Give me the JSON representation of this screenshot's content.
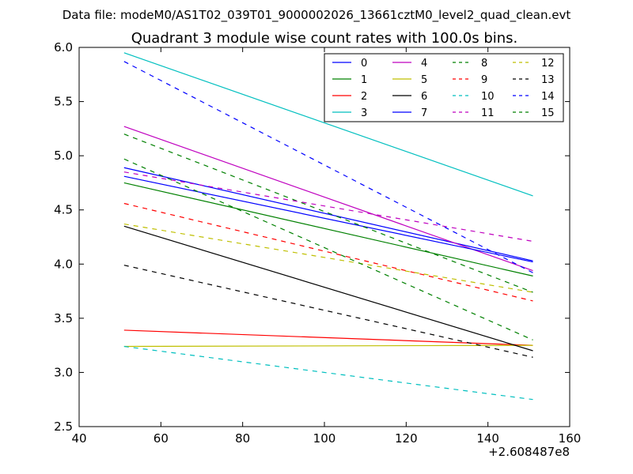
{
  "page": {
    "file_title": "Data file: modeM0/AS1T02_039T01_9000002026_13661cztM0_level2_quad_clean.evt"
  },
  "chart_data": {
    "type": "line",
    "title": "Quadrant 3 module wise count rates with 100.0s bins.",
    "xlabel": "",
    "ylabel": "",
    "x_offset_label": "+2.608487e8",
    "xlim": [
      40,
      160
    ],
    "ylim": [
      2.5,
      6.0
    ],
    "x_ticks": [
      40,
      60,
      80,
      100,
      120,
      140,
      160
    ],
    "y_ticks": [
      2.5,
      3.0,
      3.5,
      4.0,
      4.5,
      5.0,
      5.5,
      6.0
    ],
    "x_tick_labels": [
      "40",
      "60",
      "80",
      "100",
      "120",
      "140",
      "160"
    ],
    "y_tick_labels": [
      "2.5",
      "3.0",
      "3.5",
      "4.0",
      "4.5",
      "5.0",
      "5.5",
      "6.0"
    ],
    "grid": false,
    "legend_position": "top-right",
    "legend_columns": 4,
    "x": [
      51,
      151
    ],
    "series": [
      {
        "name": "0",
        "values": [
          4.89,
          4.03
        ],
        "color": "#0000ff",
        "dash": "solid"
      },
      {
        "name": "1",
        "values": [
          4.75,
          3.89
        ],
        "color": "#008000",
        "dash": "solid"
      },
      {
        "name": "2",
        "values": [
          3.39,
          3.25
        ],
        "color": "#ff0000",
        "dash": "solid"
      },
      {
        "name": "3",
        "values": [
          5.95,
          4.63
        ],
        "color": "#00bfbf",
        "dash": "solid"
      },
      {
        "name": "4",
        "values": [
          5.27,
          3.94
        ],
        "color": "#bf00bf",
        "dash": "solid"
      },
      {
        "name": "5",
        "values": [
          3.24,
          3.25
        ],
        "color": "#bfbf00",
        "dash": "solid"
      },
      {
        "name": "6",
        "values": [
          4.35,
          3.2
        ],
        "color": "#000000",
        "dash": "solid"
      },
      {
        "name": "7",
        "values": [
          4.81,
          4.02
        ],
        "color": "#0000ff",
        "dash": "solid"
      },
      {
        "name": "8",
        "values": [
          5.2,
          3.74
        ],
        "color": "#008000",
        "dash": "dashed"
      },
      {
        "name": "9",
        "values": [
          4.56,
          3.66
        ],
        "color": "#ff0000",
        "dash": "dashed"
      },
      {
        "name": "10",
        "values": [
          3.24,
          2.75
        ],
        "color": "#00bfbf",
        "dash": "dashed"
      },
      {
        "name": "11",
        "values": [
          4.85,
          4.21
        ],
        "color": "#bf00bf",
        "dash": "dashed"
      },
      {
        "name": "12",
        "values": [
          4.37,
          3.74
        ],
        "color": "#bfbf00",
        "dash": "dashed"
      },
      {
        "name": "13",
        "values": [
          3.99,
          3.14
        ],
        "color": "#000000",
        "dash": "dashed"
      },
      {
        "name": "14",
        "values": [
          5.87,
          3.92
        ],
        "color": "#0000ff",
        "dash": "dashed"
      },
      {
        "name": "15",
        "values": [
          4.97,
          3.3
        ],
        "color": "#008000",
        "dash": "dashed"
      }
    ]
  }
}
